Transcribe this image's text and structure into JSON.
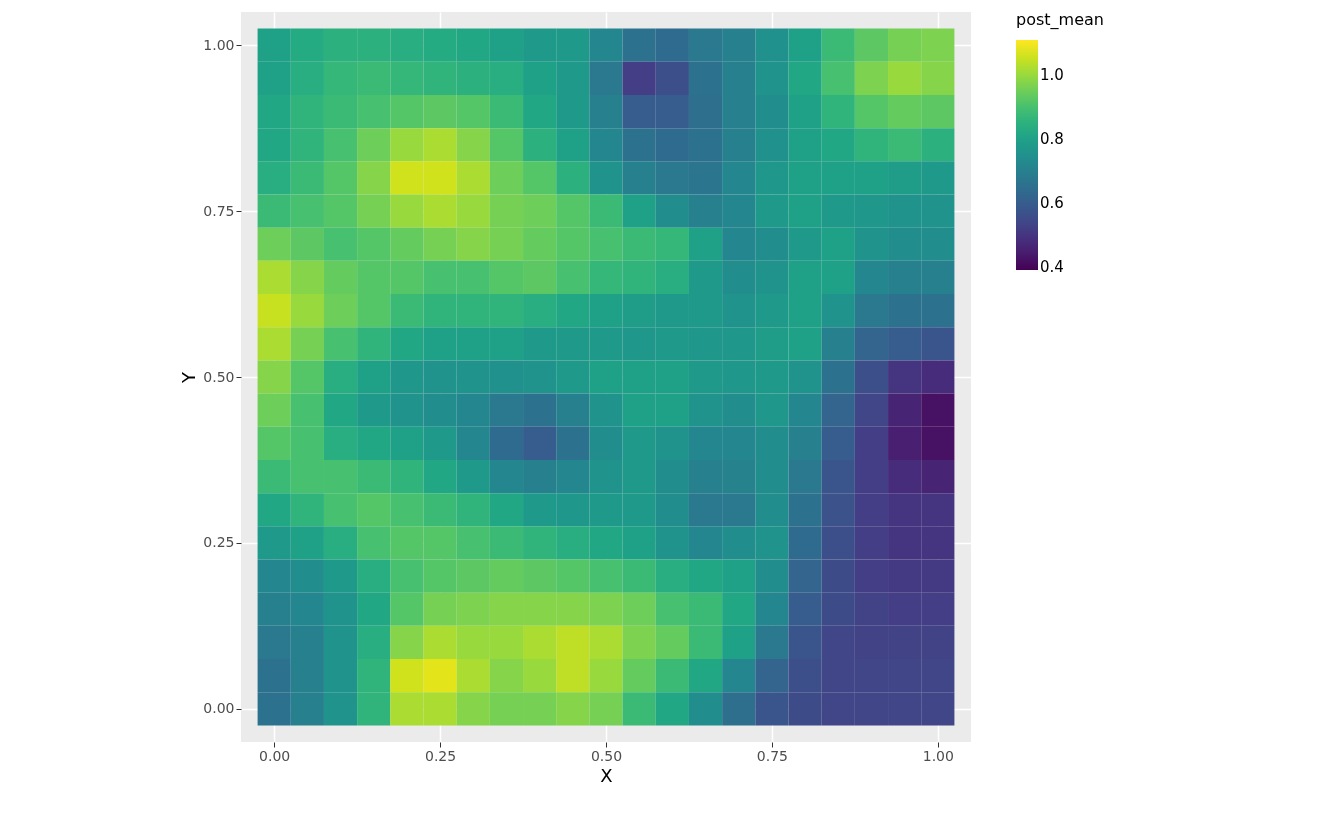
{
  "chart_data": {
    "type": "heatmap",
    "xlabel": "X",
    "ylabel": "Y",
    "legend_title": "post_mean",
    "grid": true,
    "xlim": [
      -0.05,
      1.05
    ],
    "ylim": [
      -0.05,
      1.05
    ],
    "xticks": [
      {
        "value": 0,
        "label": "0.00"
      },
      {
        "value": 0.25,
        "label": "0.25"
      },
      {
        "value": 0.5,
        "label": "0.50"
      },
      {
        "value": 0.75,
        "label": "0.75"
      },
      {
        "value": 1,
        "label": "1.00"
      }
    ],
    "yticks": [
      {
        "value": 0,
        "label": "0.00"
      },
      {
        "value": 0.25,
        "label": "0.25"
      },
      {
        "value": 0.5,
        "label": "0.50"
      },
      {
        "value": 0.75,
        "label": "0.75"
      },
      {
        "value": 1,
        "label": "1.00"
      }
    ],
    "clim": [
      0.39,
      1.11
    ],
    "cticks": [
      {
        "value": 0.4,
        "label": "0.4"
      },
      {
        "value": 0.6,
        "label": "0.6"
      },
      {
        "value": 0.8,
        "label": "0.8"
      },
      {
        "value": 1.0,
        "label": "1.0"
      }
    ],
    "x": [
      0,
      0.05,
      0.1,
      0.15,
      0.2,
      0.25,
      0.3,
      0.35,
      0.4,
      0.45,
      0.5,
      0.55,
      0.6,
      0.65,
      0.7,
      0.75,
      0.8,
      0.85,
      0.9,
      0.95,
      1.0
    ],
    "cells": [
      [
        0.8,
        0.83,
        0.85,
        0.85,
        0.84,
        0.83,
        0.82,
        0.8,
        0.78,
        0.78,
        0.72,
        0.66,
        0.64,
        0.68,
        0.7,
        0.75,
        0.8,
        0.88,
        0.93,
        0.96,
        0.97
      ],
      [
        0.8,
        0.84,
        0.87,
        0.88,
        0.87,
        0.86,
        0.85,
        0.84,
        0.8,
        0.78,
        0.68,
        0.52,
        0.56,
        0.66,
        0.7,
        0.76,
        0.82,
        0.9,
        0.97,
        1.0,
        0.98
      ],
      [
        0.82,
        0.86,
        0.88,
        0.9,
        0.92,
        0.93,
        0.92,
        0.88,
        0.82,
        0.78,
        0.7,
        0.6,
        0.6,
        0.65,
        0.7,
        0.74,
        0.8,
        0.86,
        0.92,
        0.94,
        0.93
      ],
      [
        0.82,
        0.86,
        0.9,
        0.95,
        1.0,
        1.02,
        0.98,
        0.92,
        0.85,
        0.8,
        0.72,
        0.66,
        0.64,
        0.66,
        0.7,
        0.75,
        0.8,
        0.82,
        0.86,
        0.88,
        0.85
      ],
      [
        0.84,
        0.88,
        0.92,
        0.98,
        1.06,
        1.06,
        1.02,
        0.95,
        0.92,
        0.85,
        0.76,
        0.7,
        0.68,
        0.67,
        0.72,
        0.77,
        0.8,
        0.8,
        0.8,
        0.79,
        0.78
      ],
      [
        0.88,
        0.9,
        0.92,
        0.96,
        1.0,
        1.02,
        1.0,
        0.96,
        0.95,
        0.92,
        0.88,
        0.8,
        0.74,
        0.7,
        0.72,
        0.78,
        0.8,
        0.78,
        0.77,
        0.76,
        0.76
      ],
      [
        0.95,
        0.93,
        0.9,
        0.92,
        0.94,
        0.96,
        0.98,
        0.96,
        0.94,
        0.92,
        0.9,
        0.88,
        0.87,
        0.8,
        0.72,
        0.74,
        0.78,
        0.8,
        0.76,
        0.74,
        0.74
      ],
      [
        1.02,
        0.98,
        0.94,
        0.92,
        0.92,
        0.9,
        0.9,
        0.92,
        0.93,
        0.9,
        0.87,
        0.86,
        0.84,
        0.78,
        0.74,
        0.76,
        0.8,
        0.8,
        0.72,
        0.7,
        0.7
      ],
      [
        1.05,
        1.0,
        0.95,
        0.92,
        0.88,
        0.86,
        0.86,
        0.86,
        0.84,
        0.82,
        0.8,
        0.79,
        0.78,
        0.78,
        0.76,
        0.78,
        0.8,
        0.76,
        0.68,
        0.66,
        0.66
      ],
      [
        1.02,
        0.96,
        0.9,
        0.86,
        0.82,
        0.8,
        0.8,
        0.8,
        0.78,
        0.78,
        0.78,
        0.77,
        0.78,
        0.77,
        0.77,
        0.79,
        0.8,
        0.7,
        0.62,
        0.6,
        0.58
      ],
      [
        0.98,
        0.92,
        0.84,
        0.8,
        0.77,
        0.76,
        0.76,
        0.75,
        0.76,
        0.78,
        0.8,
        0.8,
        0.8,
        0.78,
        0.77,
        0.78,
        0.76,
        0.66,
        0.56,
        0.5,
        0.48
      ],
      [
        0.95,
        0.9,
        0.82,
        0.78,
        0.76,
        0.74,
        0.72,
        0.68,
        0.66,
        0.7,
        0.76,
        0.8,
        0.8,
        0.76,
        0.74,
        0.77,
        0.72,
        0.62,
        0.54,
        0.46,
        0.42
      ],
      [
        0.92,
        0.9,
        0.84,
        0.82,
        0.8,
        0.78,
        0.72,
        0.64,
        0.6,
        0.66,
        0.74,
        0.78,
        0.76,
        0.72,
        0.72,
        0.74,
        0.7,
        0.6,
        0.52,
        0.45,
        0.42
      ],
      [
        0.88,
        0.9,
        0.9,
        0.88,
        0.86,
        0.82,
        0.78,
        0.72,
        0.7,
        0.72,
        0.76,
        0.78,
        0.74,
        0.7,
        0.71,
        0.74,
        0.68,
        0.58,
        0.52,
        0.48,
        0.46
      ],
      [
        0.82,
        0.86,
        0.9,
        0.92,
        0.9,
        0.88,
        0.86,
        0.82,
        0.78,
        0.77,
        0.78,
        0.78,
        0.74,
        0.68,
        0.68,
        0.74,
        0.66,
        0.57,
        0.52,
        0.5,
        0.5
      ],
      [
        0.78,
        0.8,
        0.84,
        0.9,
        0.92,
        0.92,
        0.9,
        0.88,
        0.86,
        0.84,
        0.82,
        0.8,
        0.76,
        0.72,
        0.74,
        0.76,
        0.64,
        0.56,
        0.52,
        0.5,
        0.5
      ],
      [
        0.72,
        0.74,
        0.78,
        0.84,
        0.9,
        0.92,
        0.93,
        0.94,
        0.93,
        0.92,
        0.9,
        0.88,
        0.84,
        0.82,
        0.8,
        0.74,
        0.62,
        0.55,
        0.52,
        0.51,
        0.51
      ],
      [
        0.7,
        0.72,
        0.76,
        0.82,
        0.92,
        0.96,
        0.97,
        0.98,
        0.98,
        0.98,
        0.97,
        0.95,
        0.9,
        0.88,
        0.82,
        0.72,
        0.6,
        0.55,
        0.53,
        0.52,
        0.52
      ],
      [
        0.68,
        0.7,
        0.76,
        0.84,
        0.98,
        1.02,
        1.0,
        1.0,
        1.02,
        1.04,
        1.02,
        0.97,
        0.94,
        0.88,
        0.8,
        0.68,
        0.58,
        0.54,
        0.53,
        0.53,
        0.53
      ],
      [
        0.66,
        0.7,
        0.76,
        0.86,
        1.06,
        1.08,
        1.02,
        0.98,
        1.0,
        1.04,
        1.0,
        0.94,
        0.88,
        0.82,
        0.72,
        0.62,
        0.56,
        0.54,
        0.54,
        0.54,
        0.54
      ],
      [
        0.66,
        0.7,
        0.76,
        0.86,
        1.02,
        1.02,
        0.98,
        0.96,
        0.96,
        0.98,
        0.96,
        0.88,
        0.82,
        0.74,
        0.65,
        0.58,
        0.55,
        0.54,
        0.54,
        0.54,
        0.54
      ]
    ]
  }
}
